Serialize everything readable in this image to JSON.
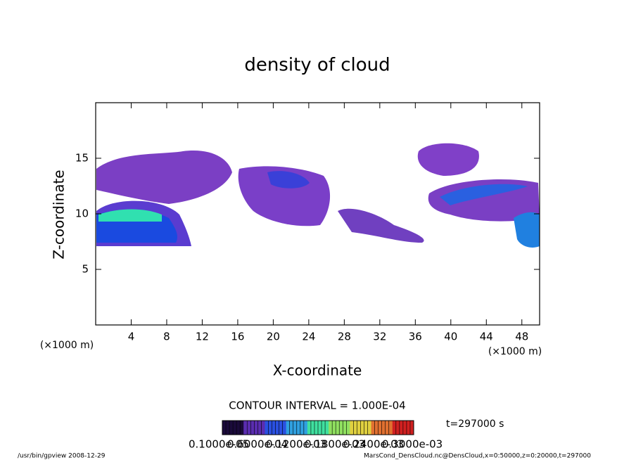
{
  "chart_data": {
    "type": "contour",
    "title": "density of cloud",
    "xlabel": "X-coordinate",
    "ylabel": "Z-coordinate",
    "x_unit": "(×1000 m)",
    "y_unit": "(×1000 m)",
    "xlim": [
      0,
      50
    ],
    "xticks": [
      4,
      8,
      12,
      16,
      20,
      24,
      28,
      32,
      36,
      40,
      44,
      48
    ],
    "ylim": [
      0,
      20
    ],
    "yticks": [
      5,
      10,
      15
    ],
    "contour_interval": "CONTOUR INTERVAL = 1.000E-04",
    "time_label": "t=297000 s",
    "colorbar_labels": [
      "0.1000e-05",
      "0.6000e-04",
      "0.1200e-03",
      "0.1800e-03",
      "0.2400e-03",
      "0.3000e-03"
    ],
    "colorbar_colors": [
      "#1a0a3a",
      "#5a2db0",
      "#2a50e0",
      "#30a0e0",
      "#40e0a0",
      "#90e060",
      "#e0d040",
      "#e07030",
      "#d02020"
    ],
    "footer_left": "/usr/bin/gpview  2008-12-29",
    "footer_right": "MarsCond_DensCloud.nc@DensCloud,x=0:50000,z=0:20000,t=297000"
  }
}
